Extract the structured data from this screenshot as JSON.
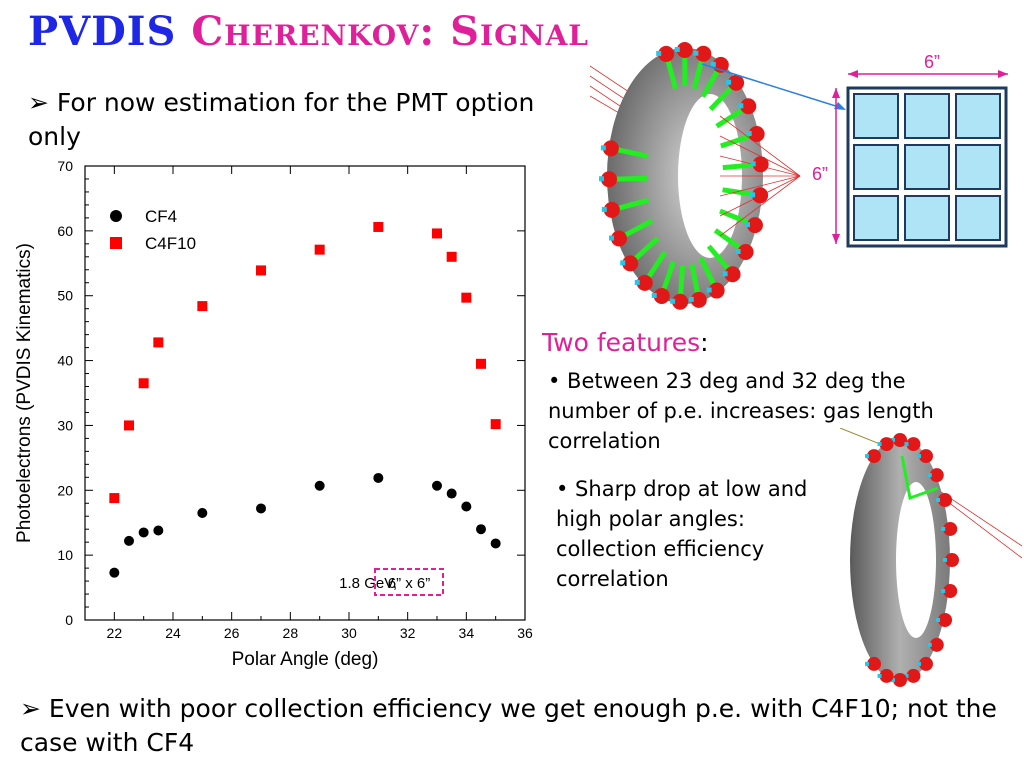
{
  "slide": {
    "title_part1": "PVDIS",
    "title_part2": "Cherenkov: Signal",
    "bullet1_marker": "➢",
    "bullet1_text": "For now estimation for the PMT option only",
    "bullet2_marker": "➢",
    "bullet2_text": "Even with poor collection efficiency we get enough p.e. with C4F10; not the case with CF4",
    "features_heading": "Two features",
    "features_colon": ":",
    "feature1": "• Between 23 deg and 32 deg the number of p.e. increases: gas length correlation",
    "feature2": "• Sharp drop at low and high polar angles: collection efficiency correlation",
    "pmt_width_label": "6”",
    "pmt_height_label": "6”",
    "colors": {
      "title_blue": "#1f27e6",
      "title_pink": "#e0209a",
      "c4f10": "#ff0000",
      "cf4": "#000000",
      "pmt_cell": "#aee4f5",
      "pmt_frame": "#1f3a5f"
    }
  },
  "chart_data": {
    "type": "scatter",
    "xlabel": "Polar Angle (deg)",
    "ylabel": "Photoelectrons (PVDIS Kinematics)",
    "xlim": [
      21,
      36
    ],
    "ylim": [
      0,
      70
    ],
    "xticks": [
      22,
      24,
      26,
      28,
      30,
      32,
      34,
      36
    ],
    "yticks": [
      0,
      10,
      20,
      30,
      40,
      50,
      60,
      70
    ],
    "legend_position": "top-left",
    "annotation_prefix": "1.8 GeV,",
    "annotation_boxed": "6” x 6”",
    "series": [
      {
        "name": "CF4",
        "marker": "circle",
        "color": "#000000",
        "x": [
          22,
          22.5,
          23,
          23.5,
          25,
          27,
          29,
          31,
          33,
          33.5,
          34,
          34.5,
          35
        ],
        "y": [
          7.3,
          12.2,
          13.5,
          13.8,
          16.5,
          17.2,
          20.7,
          21.9,
          20.7,
          19.5,
          17.5,
          14.0,
          11.8
        ]
      },
      {
        "name": "C4F10",
        "marker": "square",
        "color": "#ff0000",
        "x": [
          22,
          22.5,
          23,
          23.5,
          25,
          27,
          29,
          31,
          33,
          33.5,
          34,
          34.5,
          35
        ],
        "y": [
          18.8,
          30.0,
          36.5,
          42.8,
          48.4,
          53.9,
          57.1,
          60.6,
          59.6,
          56.0,
          49.7,
          39.5,
          30.2
        ]
      }
    ]
  }
}
